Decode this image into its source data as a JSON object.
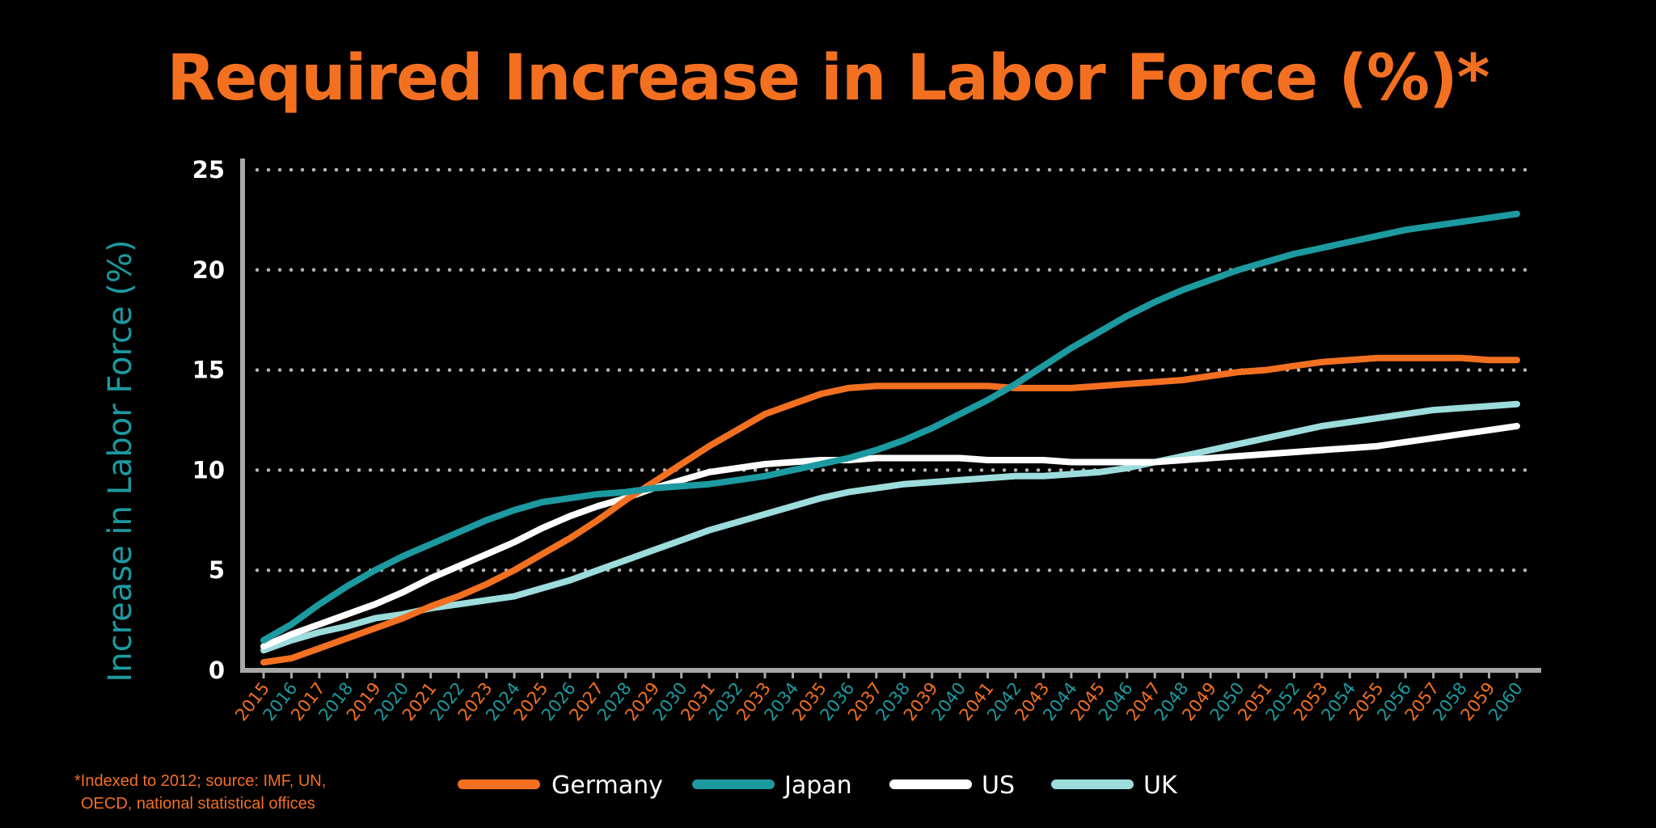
{
  "chart_data": {
    "type": "line",
    "title": "Required Increase in Labor Force (%)*",
    "ylabel": "Increase in Labor Force (%)",
    "xlabel": "",
    "ylim": [
      0,
      25
    ],
    "yticks": [
      "0",
      "5",
      "10",
      "15",
      "20",
      "25"
    ],
    "grid": "horizontal-dotted",
    "legend_position": "bottom-center",
    "x": [
      "2015",
      "2016",
      "2017",
      "2018",
      "2019",
      "2020",
      "2021",
      "2022",
      "2023",
      "2024",
      "2025",
      "2026",
      "2027",
      "2028",
      "2029",
      "2030",
      "2031",
      "2032",
      "2033",
      "2034",
      "2035",
      "2036",
      "2037",
      "2038",
      "2039",
      "2040",
      "2041",
      "2042",
      "2043",
      "2044",
      "2045",
      "2046",
      "2047",
      "2048",
      "2049",
      "2050",
      "2051",
      "2052",
      "2053",
      "2054",
      "2055",
      "2056",
      "2057",
      "2058",
      "2059",
      "2060"
    ],
    "tick_colors": [
      "#f37021",
      "#1c9aa0"
    ],
    "series": [
      {
        "name": "Germany",
        "color": "#f37021",
        "values": [
          0.4,
          0.6,
          1.1,
          1.6,
          2.1,
          2.6,
          3.2,
          3.7,
          4.3,
          5.0,
          5.8,
          6.6,
          7.5,
          8.5,
          9.4,
          10.3,
          11.2,
          12.0,
          12.8,
          13.3,
          13.8,
          14.1,
          14.2,
          14.2,
          14.2,
          14.2,
          14.2,
          14.1,
          14.1,
          14.1,
          14.2,
          14.3,
          14.4,
          14.5,
          14.7,
          14.9,
          15.0,
          15.2,
          15.4,
          15.5,
          15.6,
          15.6,
          15.6,
          15.6,
          15.5,
          15.5
        ]
      },
      {
        "name": "Japan",
        "color": "#1c9aa0",
        "values": [
          1.5,
          2.3,
          3.3,
          4.2,
          5.0,
          5.7,
          6.3,
          6.9,
          7.5,
          8.0,
          8.4,
          8.6,
          8.8,
          8.9,
          9.1,
          9.2,
          9.3,
          9.5,
          9.7,
          10.0,
          10.3,
          10.6,
          11.0,
          11.5,
          12.1,
          12.8,
          13.5,
          14.3,
          15.2,
          16.1,
          16.9,
          17.7,
          18.4,
          19.0,
          19.5,
          20.0,
          20.4,
          20.8,
          21.1,
          21.4,
          21.7,
          22.0,
          22.2,
          22.4,
          22.6,
          22.8
        ]
      },
      {
        "name": "US",
        "color": "#ffffff",
        "values": [
          1.2,
          1.8,
          2.3,
          2.8,
          3.3,
          3.9,
          4.6,
          5.2,
          5.8,
          6.4,
          7.1,
          7.7,
          8.2,
          8.6,
          9.1,
          9.5,
          9.9,
          10.1,
          10.3,
          10.4,
          10.5,
          10.5,
          10.6,
          10.6,
          10.6,
          10.6,
          10.5,
          10.5,
          10.5,
          10.4,
          10.4,
          10.4,
          10.4,
          10.5,
          10.6,
          10.7,
          10.8,
          10.9,
          11.0,
          11.1,
          11.2,
          11.4,
          11.6,
          11.8,
          12.0,
          12.2
        ]
      },
      {
        "name": "UK",
        "color": "#9ddcdc",
        "values": [
          1.0,
          1.5,
          1.9,
          2.2,
          2.6,
          2.8,
          3.1,
          3.3,
          3.5,
          3.7,
          4.1,
          4.5,
          5.0,
          5.5,
          6.0,
          6.5,
          7.0,
          7.4,
          7.8,
          8.2,
          8.6,
          8.9,
          9.1,
          9.3,
          9.4,
          9.5,
          9.6,
          9.7,
          9.7,
          9.8,
          9.9,
          10.1,
          10.4,
          10.7,
          11.0,
          11.3,
          11.6,
          11.9,
          12.2,
          12.4,
          12.6,
          12.8,
          13.0,
          13.1,
          13.2,
          13.3
        ]
      }
    ]
  },
  "footnote": {
    "line1": "*Indexed to 2012; source: IMF, UN,",
    "line2": "OECD, national statistical offices"
  }
}
